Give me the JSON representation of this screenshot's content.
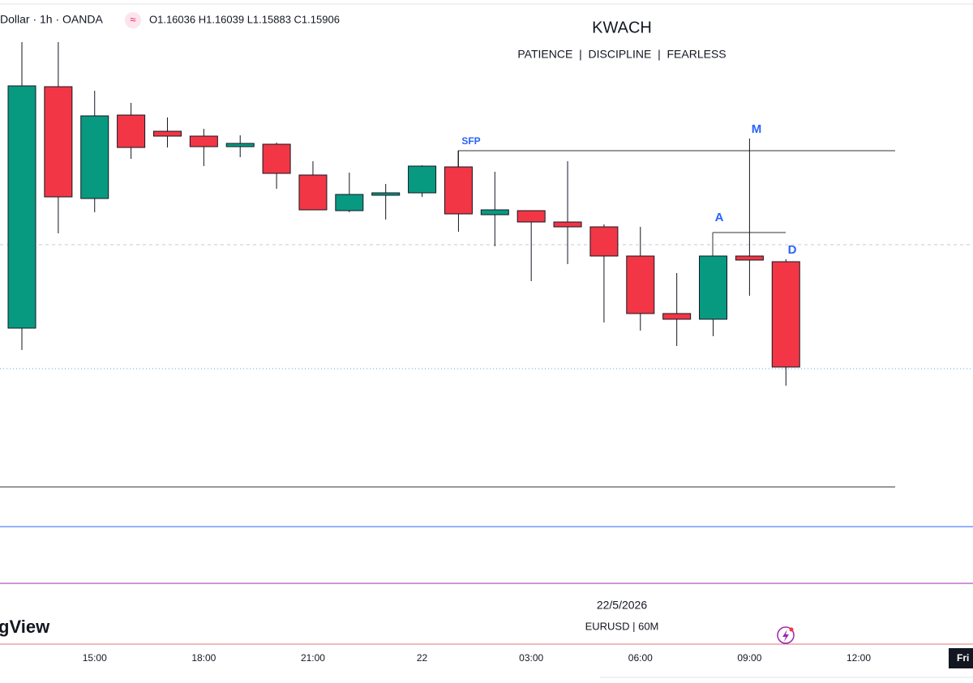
{
  "chart_data": {
    "type": "candlestick",
    "symbol": "Dollar · 1h · OANDA",
    "ohlc_label": "O1.16036 H1.16039 L1.15883 C1.15906",
    "title": "KWACH",
    "subtitle": "PATIENCE  |  DISCIPLINE  |  FEARLESS",
    "annotations": [
      "SFP",
      "M",
      "A",
      "D"
    ],
    "watermark": {
      "date": "22/5/2026",
      "symbol": "EURUSD | 60M"
    },
    "brand": "gView",
    "crosshair_label": "Fri",
    "categories": [
      null,
      null,
      "15:00",
      null,
      null,
      "18:00",
      null,
      null,
      "21:00",
      null,
      null,
      "22",
      null,
      null,
      "03:00",
      null,
      null,
      "06:00",
      null,
      null,
      "09:00",
      null,
      null,
      "12:00"
    ],
    "open": [
      1.15954,
      1.16252,
      1.16114,
      1.16217,
      1.16197,
      1.16191,
      1.16178,
      1.16181,
      1.16143,
      1.16099,
      1.16118,
      1.16121,
      1.16153,
      1.16094,
      1.16099,
      1.16085,
      1.16079,
      1.16043,
      1.15972,
      1.15965,
      1.16043,
      1.16036,
      null,
      null
    ],
    "high": [
      1.16307,
      1.16307,
      1.16247,
      1.16232,
      1.16214,
      1.162,
      1.16192,
      1.16183,
      1.1616,
      1.16146,
      1.16132,
      1.16155,
      1.16173,
      1.16147,
      1.16099,
      1.1616,
      1.16082,
      1.16079,
      1.16022,
      1.16043,
      1.16188,
      1.16039,
      null,
      null
    ],
    "low": [
      1.15927,
      1.16071,
      1.16097,
      1.16163,
      1.16177,
      1.16154,
      1.16165,
      1.16126,
      1.161,
      1.16097,
      1.16088,
      1.16116,
      1.16073,
      1.16055,
      1.16012,
      1.16033,
      1.15961,
      1.15951,
      1.15932,
      1.15944,
      1.15994,
      1.15883,
      null,
      null
    ],
    "close": [
      1.16253,
      1.16116,
      1.16216,
      1.16177,
      1.16191,
      1.16178,
      1.16182,
      1.16145,
      1.161,
      1.16119,
      1.16121,
      1.16154,
      1.16095,
      1.161,
      1.16085,
      1.16079,
      1.16043,
      1.15972,
      1.15965,
      1.16043,
      1.16038,
      1.15906,
      null,
      null
    ],
    "colors": {
      "up": "#089981",
      "down": "#f23645"
    },
    "ylim": [
      1.15564,
      1.16354
    ]
  }
}
